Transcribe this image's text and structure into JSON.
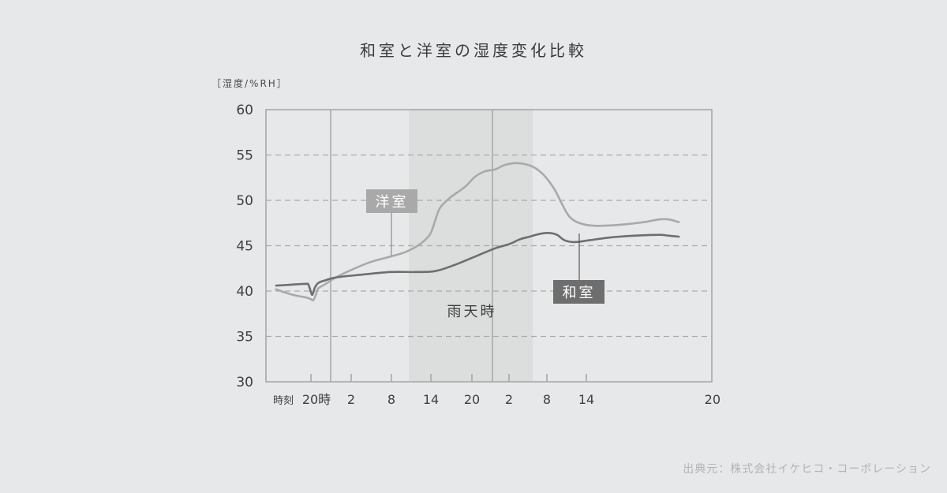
{
  "chart_data": {
    "type": "line",
    "title": "和室と洋室の湿度変化比較",
    "ylabel": "［湿度/%RH］",
    "ylim": [
      30,
      60
    ],
    "yticks": [
      "60",
      "55",
      "50",
      "45",
      "40",
      "35",
      "30"
    ],
    "x_first_label": "時刻",
    "xticks": [
      "20時",
      "2",
      "8",
      "14",
      "20",
      "2",
      "8",
      "14",
      "20"
    ],
    "grid": "dashed horizontal",
    "shaded_region": {
      "label": "雨天時"
    },
    "series": [
      {
        "name": "洋室",
        "color": "#a9a9a9",
        "points": [
          [
            -7,
            40.2
          ],
          [
            -5,
            39.8
          ],
          [
            -3,
            39.5
          ],
          [
            -1,
            39.3
          ],
          [
            0,
            39.1
          ],
          [
            0.5,
            39.0
          ],
          [
            1,
            39.6
          ],
          [
            1.5,
            40.3
          ],
          [
            3,
            40.8
          ],
          [
            5,
            41.5
          ],
          [
            8,
            42.3
          ],
          [
            12,
            43.2
          ],
          [
            16,
            43.8
          ],
          [
            19,
            44.3
          ],
          [
            22,
            45.2
          ],
          [
            24,
            46.3
          ],
          [
            25,
            47.8
          ],
          [
            26,
            49.2
          ],
          [
            28,
            50.3
          ],
          [
            31,
            51.5
          ],
          [
            33,
            52.6
          ],
          [
            35,
            53.2
          ],
          [
            37,
            53.4
          ],
          [
            39,
            53.9
          ],
          [
            41,
            54.1
          ],
          [
            43,
            54.0
          ],
          [
            45,
            53.6
          ],
          [
            47,
            52.7
          ],
          [
            49,
            51.2
          ],
          [
            50.5,
            49.6
          ],
          [
            52,
            48.2
          ],
          [
            54,
            47.5
          ],
          [
            57,
            47.2
          ],
          [
            62,
            47.3
          ],
          [
            67,
            47.6
          ],
          [
            70,
            47.9
          ],
          [
            72,
            47.9
          ],
          [
            74,
            47.6
          ]
        ]
      },
      {
        "name": "和室",
        "color": "#6e6e6e",
        "points": [
          [
            -7,
            40.6
          ],
          [
            -4,
            40.7
          ],
          [
            -1,
            40.8
          ],
          [
            -0.5,
            40.7
          ],
          [
            0,
            39.9
          ],
          [
            0.3,
            39.6
          ],
          [
            0.8,
            40.4
          ],
          [
            1.5,
            40.9
          ],
          [
            3,
            41.2
          ],
          [
            5,
            41.5
          ],
          [
            10,
            41.8
          ],
          [
            16,
            42.1
          ],
          [
            21,
            42.1
          ],
          [
            25,
            42.2
          ],
          [
            29,
            42.9
          ],
          [
            33,
            43.8
          ],
          [
            37,
            44.7
          ],
          [
            40,
            45.2
          ],
          [
            42,
            45.7
          ],
          [
            44,
            46.0
          ],
          [
            46,
            46.3
          ],
          [
            48,
            46.4
          ],
          [
            49.5,
            46.2
          ],
          [
            51,
            45.6
          ],
          [
            53,
            45.4
          ],
          [
            56,
            45.6
          ],
          [
            60,
            45.9
          ],
          [
            65,
            46.1
          ],
          [
            70,
            46.2
          ],
          [
            72,
            46.1
          ],
          [
            74,
            46.0
          ]
        ]
      }
    ]
  },
  "source": "出典元：株式会社イケヒコ・コーポレーション"
}
